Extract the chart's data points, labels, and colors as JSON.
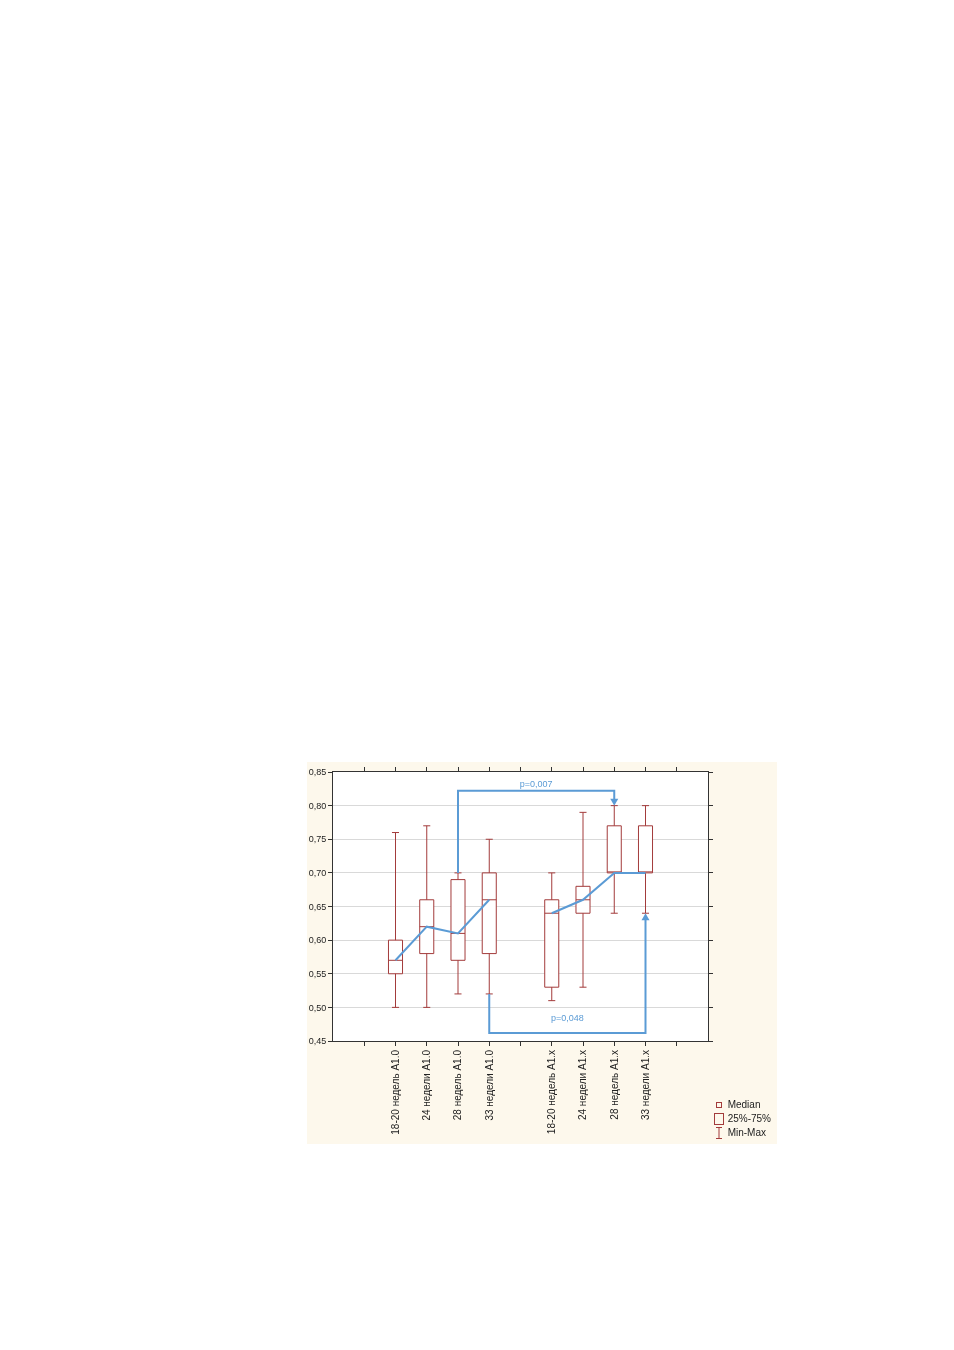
{
  "chart_data": {
    "type": "box",
    "categories": [
      null,
      "18-20 недель A1.0",
      "24 недели A1.0",
      "28 недель A1.0",
      "33 недели A1.0",
      null,
      "18-20 недель A1.x",
      "24 недели A1.x",
      "28 недель A1.x",
      "33 недели A1.x",
      null
    ],
    "series": [
      {
        "type": "box",
        "color": "#a33b3b",
        "boxes": [
          null,
          {
            "low": 0.5,
            "q1": 0.55,
            "median": 0.57,
            "q3": 0.6,
            "high": 0.76
          },
          {
            "low": 0.5,
            "q1": 0.58,
            "median": 0.62,
            "q3": 0.66,
            "high": 0.77
          },
          {
            "low": 0.52,
            "q1": 0.57,
            "median": 0.61,
            "q3": 0.69,
            "high": 0.7
          },
          {
            "low": 0.52,
            "q1": 0.58,
            "median": 0.66,
            "q3": 0.7,
            "high": 0.75
          },
          null,
          {
            "low": 0.51,
            "q1": 0.53,
            "median": 0.64,
            "q3": 0.66,
            "high": 0.7
          },
          {
            "low": 0.53,
            "q1": 0.64,
            "median": 0.66,
            "q3": 0.68,
            "high": 0.79
          },
          {
            "low": 0.64,
            "q1": 0.7,
            "median": 0.7,
            "q3": 0.77,
            "high": 0.8
          },
          {
            "low": 0.64,
            "q1": 0.7,
            "median": 0.7,
            "q3": 0.77,
            "high": 0.8
          },
          null
        ]
      },
      {
        "type": "line",
        "color": "#5b9bd5",
        "values": [
          null,
          0.57,
          0.62,
          0.61,
          0.66,
          null,
          0.64,
          0.66,
          0.7,
          0.7,
          null
        ]
      }
    ],
    "ylim": [
      0.45,
      0.85
    ],
    "yticks": [
      {
        "value": 0.45,
        "label": "0,45"
      },
      {
        "value": 0.5,
        "label": "0,50"
      },
      {
        "value": 0.55,
        "label": "0,55"
      },
      {
        "value": 0.6,
        "label": "0,60"
      },
      {
        "value": 0.65,
        "label": "0,65"
      },
      {
        "value": 0.7,
        "label": "0,70"
      },
      {
        "value": 0.75,
        "label": "0,75"
      },
      {
        "value": 0.8,
        "label": "0,80"
      },
      {
        "value": 0.85,
        "label": "0,85"
      }
    ],
    "grid": "y",
    "annotations": [
      "p=0,007",
      "p=0,048",
      "Median",
      "25%-75%",
      "Min-Max"
    ]
  }
}
